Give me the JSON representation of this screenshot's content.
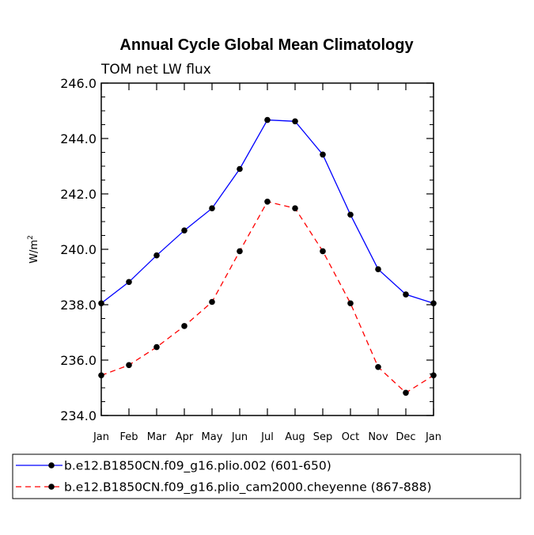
{
  "chart_data": {
    "type": "line",
    "title": "Annual Cycle Global Mean Climatology",
    "subtitle": "TOM net LW flux",
    "xlabel": "",
    "ylabel_base": "W/m",
    "ylabel_sup": "2",
    "categories": [
      "Jan",
      "Feb",
      "Mar",
      "Apr",
      "May",
      "Jun",
      "Jul",
      "Aug",
      "Sep",
      "Oct",
      "Nov",
      "Dec",
      "Jan"
    ],
    "ylim": [
      234.0,
      246.0
    ],
    "yticks": [
      234.0,
      236.0,
      238.0,
      240.0,
      242.0,
      244.0,
      246.0
    ],
    "ytick_labels": [
      "234.0",
      "236.0",
      "238.0",
      "240.0",
      "242.0",
      "244.0",
      "246.0"
    ],
    "legend_position": "bottom",
    "series": [
      {
        "name": "b.e12.B1850CN.f09_g16.plio.002 (601-650)",
        "color": "#0000ff",
        "dash": "solid",
        "values": [
          238.05,
          238.82,
          239.78,
          240.68,
          241.48,
          242.9,
          244.67,
          244.62,
          243.42,
          241.25,
          239.28,
          238.37,
          238.05
        ]
      },
      {
        "name": "b.e12.B1850CN.f09_g16.plio_cam2000.cheyenne (867-888)",
        "color": "#ff0000",
        "dash": "dashed",
        "values": [
          235.45,
          235.82,
          236.47,
          237.23,
          238.1,
          239.93,
          241.72,
          241.48,
          239.93,
          238.05,
          235.75,
          234.82,
          235.45
        ]
      }
    ]
  }
}
